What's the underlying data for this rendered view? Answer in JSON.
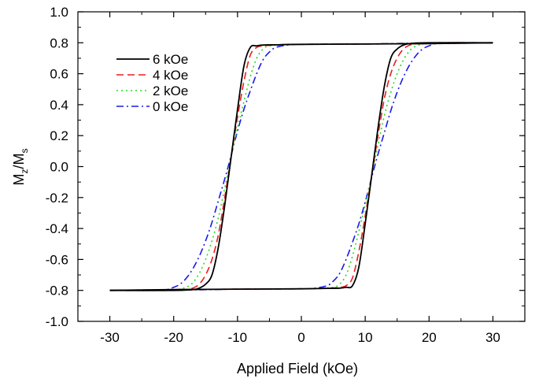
{
  "chart_data": {
    "type": "line",
    "title": "",
    "xlabel": "Applied Field (kOe)",
    "ylabel_main": "M",
    "ylabel_sub1": "z",
    "ylabel_sep": "/M",
    "ylabel_sub2": "s",
    "xlim": [
      -35,
      35
    ],
    "ylim": [
      -1.0,
      1.0
    ],
    "xticks": [
      -30,
      -20,
      -10,
      0,
      10,
      20,
      30
    ],
    "yticks": [
      -1.0,
      -0.8,
      -0.6,
      -0.4,
      -0.2,
      0.0,
      0.2,
      0.4,
      0.6,
      0.8,
      1.0
    ],
    "xtick_labels": [
      "-30",
      "-20",
      "-10",
      "0",
      "10",
      "20",
      "30"
    ],
    "ytick_labels": [
      "-1.0",
      "-0.8",
      "-0.6",
      "-0.4",
      "-0.2",
      "0.0",
      "0.2",
      "0.4",
      "0.6",
      "0.8",
      "1.0"
    ],
    "grid": false,
    "legend_position": "top-left",
    "series": [
      {
        "name": "6 kOe",
        "color": "#000000",
        "dash": "solid",
        "descending": {
          "x": [
            30,
            20,
            10,
            0,
            -4,
            -6,
            -7,
            -8,
            -9,
            -10,
            -11,
            -12,
            -13,
            -14,
            -15,
            -16,
            -17,
            -20,
            -30
          ],
          "y": [
            0.8,
            0.795,
            0.792,
            0.79,
            0.787,
            0.785,
            0.78,
            0.77,
            0.65,
            0.37,
            0.06,
            -0.25,
            -0.52,
            -0.7,
            -0.76,
            -0.785,
            -0.795,
            -0.8,
            -0.8
          ]
        },
        "ascending": {
          "x": [
            -30,
            -20,
            -10,
            0,
            4,
            6,
            7,
            8,
            9,
            10,
            11,
            12,
            13,
            14,
            15,
            16,
            17,
            20,
            30
          ],
          "y": [
            -0.8,
            -0.795,
            -0.792,
            -0.79,
            -0.787,
            -0.785,
            -0.78,
            -0.77,
            -0.65,
            -0.37,
            -0.06,
            0.25,
            0.52,
            0.7,
            0.76,
            0.785,
            0.795,
            0.8,
            0.8
          ]
        }
      },
      {
        "name": "4 kOe",
        "color": "#ee1c1c",
        "dash": "dashed",
        "descending": {
          "x": [
            30,
            20,
            10,
            0,
            -4,
            -6,
            -7,
            -8,
            -9,
            -10,
            -11,
            -12,
            -13,
            -14,
            -15,
            -16,
            -17,
            -18,
            -20,
            -30
          ],
          "y": [
            0.8,
            0.795,
            0.792,
            0.79,
            0.786,
            0.78,
            0.77,
            0.72,
            0.55,
            0.32,
            0.06,
            -0.2,
            -0.44,
            -0.6,
            -0.7,
            -0.76,
            -0.785,
            -0.795,
            -0.8,
            -0.8
          ]
        },
        "ascending": {
          "x": [
            -30,
            -20,
            -10,
            0,
            4,
            6,
            7,
            8,
            9,
            10,
            11,
            12,
            13,
            14,
            15,
            16,
            17,
            18,
            20,
            30
          ],
          "y": [
            -0.8,
            -0.795,
            -0.792,
            -0.79,
            -0.786,
            -0.78,
            -0.77,
            -0.72,
            -0.55,
            -0.32,
            -0.06,
            0.2,
            0.44,
            0.6,
            0.7,
            0.76,
            0.785,
            0.795,
            0.8,
            0.8
          ]
        }
      },
      {
        "name": "2 kOe",
        "color": "#22dd22",
        "dash": "dotted",
        "descending": {
          "x": [
            30,
            20,
            10,
            0,
            -3,
            -5,
            -6,
            -7,
            -8,
            -9,
            -10,
            -11,
            -12,
            -13,
            -14,
            -15,
            -16,
            -17,
            -18,
            -19,
            -20,
            -30
          ],
          "y": [
            0.8,
            0.795,
            0.792,
            0.79,
            0.786,
            0.78,
            0.76,
            0.7,
            0.58,
            0.42,
            0.25,
            0.06,
            -0.14,
            -0.33,
            -0.48,
            -0.6,
            -0.69,
            -0.75,
            -0.78,
            -0.79,
            -0.8,
            -0.8
          ]
        },
        "ascending": {
          "x": [
            -30,
            -20,
            -10,
            0,
            3,
            5,
            6,
            7,
            8,
            9,
            10,
            11,
            12,
            13,
            14,
            15,
            16,
            17,
            18,
            19,
            20,
            30
          ],
          "y": [
            -0.8,
            -0.795,
            -0.792,
            -0.79,
            -0.786,
            -0.78,
            -0.76,
            -0.7,
            -0.58,
            -0.42,
            -0.25,
            -0.06,
            0.14,
            0.33,
            0.48,
            0.6,
            0.69,
            0.75,
            0.78,
            0.79,
            0.8,
            0.8
          ]
        }
      },
      {
        "name": "0 kOe",
        "color": "#1a1ae6",
        "dash": "dashdot",
        "descending": {
          "x": [
            30,
            22,
            10,
            0,
            -2,
            -4,
            -5,
            -6,
            -7,
            -8,
            -9,
            -10,
            -11,
            -12,
            -13,
            -14,
            -15,
            -16,
            -17,
            -18,
            -19,
            -20,
            -21,
            -22,
            -30
          ],
          "y": [
            0.8,
            0.8,
            0.792,
            0.79,
            0.786,
            0.77,
            0.74,
            0.69,
            0.6,
            0.49,
            0.37,
            0.23,
            0.07,
            -0.08,
            -0.22,
            -0.36,
            -0.48,
            -0.58,
            -0.66,
            -0.72,
            -0.76,
            -0.78,
            -0.795,
            -0.8,
            -0.8
          ]
        },
        "ascending": {
          "x": [
            -30,
            -22,
            -10,
            0,
            2,
            4,
            5,
            6,
            7,
            8,
            9,
            10,
            11,
            12,
            13,
            14,
            15,
            16,
            17,
            18,
            19,
            20,
            21,
            22,
            30
          ],
          "y": [
            -0.8,
            -0.8,
            -0.792,
            -0.79,
            -0.786,
            -0.77,
            -0.74,
            -0.69,
            -0.6,
            -0.49,
            -0.37,
            -0.23,
            -0.07,
            0.08,
            0.22,
            0.36,
            0.48,
            0.58,
            0.66,
            0.72,
            0.76,
            0.78,
            0.795,
            0.8,
            0.8
          ]
        }
      }
    ]
  }
}
